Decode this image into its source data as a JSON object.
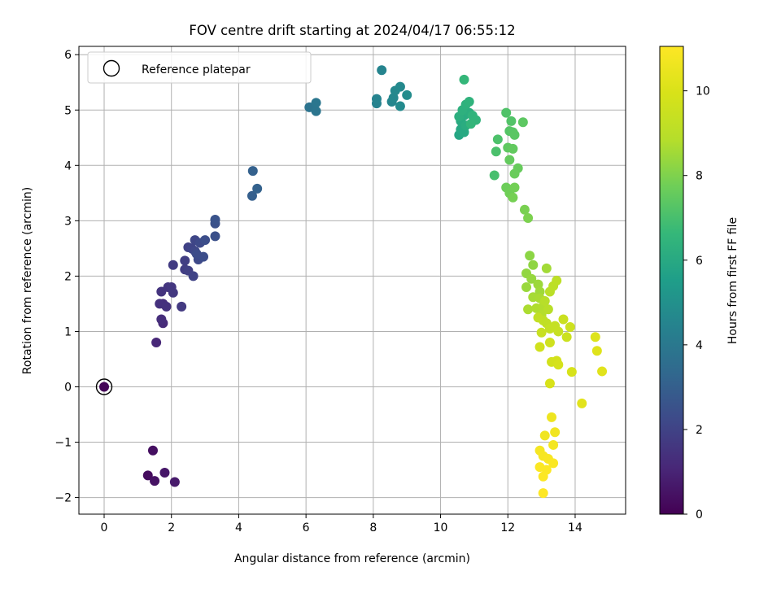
{
  "chart_data": {
    "type": "scatter",
    "title": "FOV centre drift starting at 2024/04/17 06:55:12",
    "xlabel": "Angular distance from reference (arcmin)",
    "ylabel": "Rotation from reference (arcmin)",
    "xlim": [
      -0.75,
      15.5
    ],
    "ylim": [
      -2.3,
      6.15
    ],
    "xticks": [
      0,
      2,
      4,
      6,
      8,
      10,
      12,
      14
    ],
    "yticks": [
      -2,
      -1,
      0,
      1,
      2,
      3,
      4,
      5,
      6
    ],
    "grid": true,
    "legend": {
      "placement": "top-left",
      "entries": [
        "Reference platepar"
      ]
    },
    "reference_point": {
      "x": 0,
      "y": 0
    },
    "colorbar": {
      "label": "Hours from first FF file",
      "colormap": "viridis",
      "range": [
        0,
        11.05
      ],
      "ticks": [
        0,
        2,
        4,
        6,
        8,
        10
      ]
    },
    "points": [
      [
        0,
        0,
        0.1
      ],
      [
        1.3,
        -1.6,
        0.3
      ],
      [
        1.45,
        -1.15,
        0.4
      ],
      [
        1.5,
        -1.7,
        0.5
      ],
      [
        1.8,
        -1.55,
        0.6
      ],
      [
        2.1,
        -1.72,
        0.7
      ],
      [
        1.55,
        0.8,
        1.1
      ],
      [
        1.75,
        1.15,
        1.2
      ],
      [
        1.7,
        1.22,
        1.3
      ],
      [
        1.75,
        1.5,
        1.35
      ],
      [
        1.65,
        1.5,
        1.4
      ],
      [
        1.85,
        1.45,
        1.45
      ],
      [
        1.7,
        1.72,
        1.5
      ],
      [
        1.9,
        1.8,
        1.55
      ],
      [
        2.0,
        1.8,
        1.6
      ],
      [
        2.05,
        1.7,
        1.65
      ],
      [
        2.3,
        1.45,
        1.7
      ],
      [
        2.05,
        2.2,
        1.75
      ],
      [
        2.4,
        2.12,
        1.8
      ],
      [
        2.4,
        2.28,
        1.85
      ],
      [
        2.5,
        2.1,
        1.9
      ],
      [
        2.5,
        2.52,
        1.95
      ],
      [
        2.65,
        2.0,
        2.0
      ],
      [
        2.6,
        2.5,
        2.05
      ],
      [
        2.7,
        2.65,
        2.1
      ],
      [
        2.7,
        2.45,
        2.15
      ],
      [
        2.8,
        2.3,
        2.2
      ],
      [
        2.85,
        2.6,
        2.25
      ],
      [
        2.75,
        2.4,
        2.3
      ],
      [
        2.95,
        2.35,
        2.35
      ],
      [
        3.0,
        2.65,
        2.4
      ],
      [
        3.3,
        2.72,
        2.45
      ],
      [
        3.3,
        2.95,
        2.5
      ],
      [
        3.3,
        3.02,
        2.55
      ],
      [
        4.4,
        3.45,
        3.0
      ],
      [
        4.42,
        3.9,
        3.05
      ],
      [
        4.55,
        3.58,
        3.1
      ],
      [
        6.1,
        5.05,
        3.8
      ],
      [
        6.3,
        4.98,
        3.85
      ],
      [
        6.3,
        5.13,
        3.9
      ],
      [
        8.1,
        5.12,
        4.4
      ],
      [
        8.1,
        5.2,
        4.45
      ],
      [
        8.25,
        5.72,
        4.5
      ],
      [
        8.55,
        5.15,
        4.55
      ],
      [
        8.6,
        5.22,
        4.6
      ],
      [
        8.65,
        5.35,
        4.65
      ],
      [
        8.8,
        5.42,
        4.7
      ],
      [
        8.8,
        5.07,
        4.75
      ],
      [
        9.0,
        5.27,
        4.8
      ],
      [
        10.55,
        4.55,
        5.9
      ],
      [
        10.6,
        4.65,
        5.95
      ],
      [
        10.7,
        4.6,
        6.0
      ],
      [
        10.6,
        4.8,
        6.05
      ],
      [
        10.7,
        4.9,
        6.1
      ],
      [
        10.75,
        4.72,
        6.15
      ],
      [
        10.85,
        4.95,
        6.2
      ],
      [
        10.55,
        4.88,
        6.25
      ],
      [
        10.65,
        5.0,
        6.3
      ],
      [
        10.75,
        5.1,
        6.35
      ],
      [
        10.85,
        5.15,
        6.4
      ],
      [
        10.95,
        4.9,
        6.45
      ],
      [
        11.05,
        4.82,
        6.5
      ],
      [
        10.9,
        4.75,
        6.55
      ],
      [
        10.7,
        5.55,
        6.6
      ],
      [
        11.6,
        3.82,
        7.0
      ],
      [
        11.65,
        4.25,
        7.05
      ],
      [
        11.7,
        4.47,
        7.1
      ],
      [
        11.95,
        4.95,
        7.15
      ],
      [
        12.1,
        4.8,
        7.2
      ],
      [
        12.05,
        4.62,
        7.25
      ],
      [
        12.15,
        4.6,
        7.3
      ],
      [
        12.2,
        4.55,
        7.35
      ],
      [
        12.45,
        4.78,
        7.4
      ],
      [
        12.0,
        4.32,
        7.45
      ],
      [
        12.15,
        4.3,
        7.5
      ],
      [
        12.05,
        4.1,
        7.55
      ],
      [
        12.3,
        3.95,
        7.6
      ],
      [
        12.2,
        3.85,
        7.65
      ],
      [
        11.95,
        3.6,
        7.7
      ],
      [
        12.05,
        3.5,
        7.75
      ],
      [
        12.2,
        3.6,
        7.8
      ],
      [
        12.15,
        3.42,
        7.85
      ],
      [
        12.5,
        3.2,
        7.9
      ],
      [
        12.6,
        3.05,
        7.95
      ],
      [
        12.65,
        2.37,
        8.2
      ],
      [
        12.75,
        2.2,
        8.25
      ],
      [
        12.55,
        2.05,
        8.3
      ],
      [
        12.7,
        1.95,
        8.35
      ],
      [
        12.55,
        1.8,
        8.4
      ],
      [
        12.9,
        1.85,
        8.45
      ],
      [
        12.95,
        1.72,
        8.5
      ],
      [
        13.15,
        2.14,
        8.55
      ],
      [
        12.75,
        1.62,
        8.6
      ],
      [
        12.95,
        1.6,
        8.65
      ],
      [
        12.6,
        1.4,
        8.7
      ],
      [
        12.85,
        1.42,
        8.75
      ],
      [
        13.05,
        1.45,
        8.8
      ],
      [
        13.0,
        1.3,
        8.85
      ],
      [
        13.1,
        1.55,
        8.9
      ],
      [
        13.2,
        1.4,
        8.95
      ],
      [
        13.25,
        1.72,
        9.0
      ],
      [
        13.35,
        1.82,
        9.05
      ],
      [
        13.45,
        1.92,
        9.1
      ],
      [
        13.05,
        1.2,
        9.15
      ],
      [
        13.15,
        1.15,
        9.2
      ],
      [
        12.9,
        1.25,
        9.25
      ],
      [
        13.25,
        1.05,
        9.3
      ],
      [
        13.4,
        1.1,
        9.35
      ],
      [
        13.5,
        1.0,
        9.4
      ],
      [
        13.0,
        0.98,
        9.45
      ],
      [
        13.65,
        1.22,
        9.5
      ],
      [
        13.75,
        0.9,
        9.55
      ],
      [
        13.85,
        1.08,
        9.6
      ],
      [
        13.25,
        0.8,
        9.65
      ],
      [
        12.95,
        0.72,
        9.7
      ],
      [
        13.3,
        0.45,
        9.75
      ],
      [
        13.45,
        0.47,
        9.8
      ],
      [
        13.5,
        0.4,
        9.85
      ],
      [
        13.9,
        0.27,
        9.9
      ],
      [
        13.25,
        0.06,
        9.95
      ],
      [
        14.6,
        0.9,
        10.1
      ],
      [
        14.65,
        0.65,
        10.15
      ],
      [
        14.8,
        0.28,
        10.2
      ],
      [
        14.2,
        -0.3,
        10.25
      ],
      [
        13.3,
        -0.55,
        10.6
      ],
      [
        13.1,
        -0.88,
        10.65
      ],
      [
        13.4,
        -0.82,
        10.7
      ],
      [
        13.35,
        -1.05,
        10.75
      ],
      [
        12.95,
        -1.15,
        10.8
      ],
      [
        13.05,
        -1.25,
        10.85
      ],
      [
        13.2,
        -1.3,
        10.9
      ],
      [
        13.35,
        -1.38,
        10.95
      ],
      [
        12.95,
        -1.45,
        11.0
      ],
      [
        13.15,
        -1.5,
        11.0
      ],
      [
        13.05,
        -1.62,
        11.02
      ],
      [
        13.05,
        -1.92,
        11.05
      ]
    ]
  }
}
